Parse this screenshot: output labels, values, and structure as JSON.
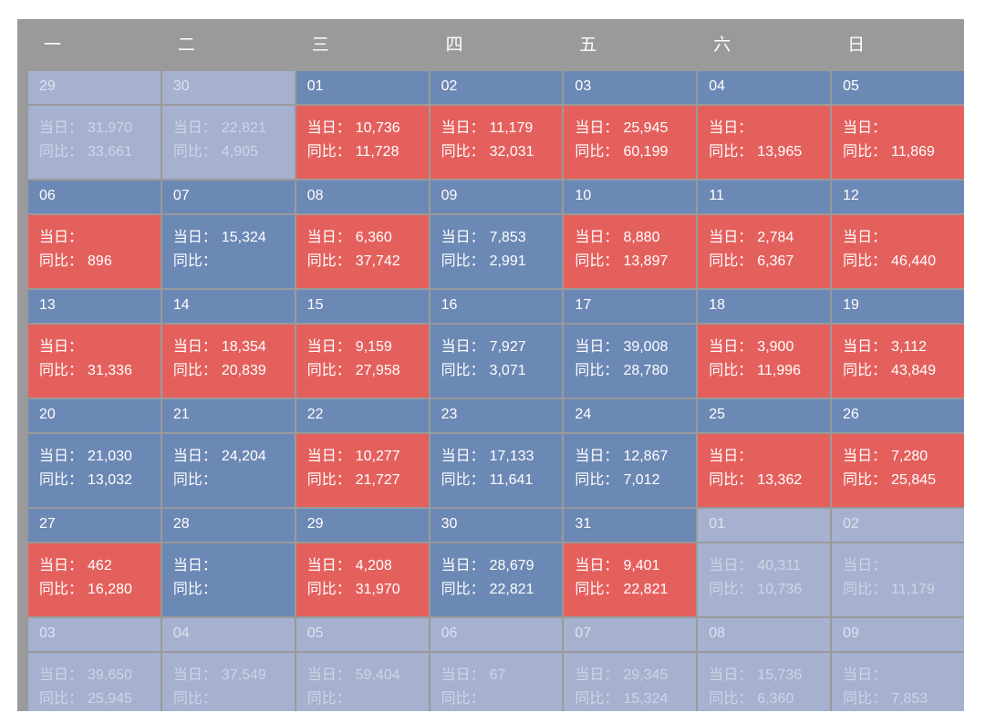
{
  "chart_data": {
    "type": "heatmap",
    "subtype": "calendar-heatmap",
    "weekday_headers": [
      "一",
      "二",
      "三",
      "四",
      "五",
      "六",
      "日"
    ],
    "labels": {
      "day": "当日：",
      "yoy": "同比："
    },
    "colors": {
      "frame_bg": "#9a9a9a",
      "current_month_blue": "#6c88b5",
      "highlight_red": "#e4605d",
      "other_month_faded": "#a6b1d0",
      "text_white": "#ffffff",
      "faded_text": "#ced5e5"
    },
    "legend_position": "none",
    "grid": "2px gray gaps between cells",
    "weeks": [
      [
        {
          "date": "29",
          "kind": "out",
          "day": "31,970",
          "yoy": "33,661"
        },
        {
          "date": "30",
          "kind": "out",
          "day": "22,821",
          "yoy": "4,905"
        },
        {
          "date": "01",
          "kind": "red",
          "day": "10,736",
          "yoy": "11,728"
        },
        {
          "date": "02",
          "kind": "red",
          "day": "11,179",
          "yoy": "32,031"
        },
        {
          "date": "03",
          "kind": "red",
          "day": "25,945",
          "yoy": "60,199"
        },
        {
          "date": "04",
          "kind": "red",
          "day": "",
          "yoy": "13,965"
        },
        {
          "date": "05",
          "kind": "red",
          "day": "",
          "yoy": "11,869"
        }
      ],
      [
        {
          "date": "06",
          "kind": "red",
          "day": "",
          "yoy": "896"
        },
        {
          "date": "07",
          "kind": "blue",
          "day": "15,324",
          "yoy": ""
        },
        {
          "date": "08",
          "kind": "red",
          "day": "6,360",
          "yoy": "37,742"
        },
        {
          "date": "09",
          "kind": "blue",
          "day": "7,853",
          "yoy": "2,991"
        },
        {
          "date": "10",
          "kind": "red",
          "day": "8,880",
          "yoy": "13,897"
        },
        {
          "date": "11",
          "kind": "red",
          "day": "2,784",
          "yoy": "6,367"
        },
        {
          "date": "12",
          "kind": "red",
          "day": "",
          "yoy": "46,440"
        }
      ],
      [
        {
          "date": "13",
          "kind": "red",
          "day": "",
          "yoy": "31,336"
        },
        {
          "date": "14",
          "kind": "red",
          "day": "18,354",
          "yoy": "20,839"
        },
        {
          "date": "15",
          "kind": "red",
          "day": "9,159",
          "yoy": "27,958"
        },
        {
          "date": "16",
          "kind": "blue",
          "day": "7,927",
          "yoy": "3,071"
        },
        {
          "date": "17",
          "kind": "blue",
          "day": "39,008",
          "yoy": "28,780"
        },
        {
          "date": "18",
          "kind": "red",
          "day": "3,900",
          "yoy": "11,996"
        },
        {
          "date": "19",
          "kind": "red",
          "day": "3,112",
          "yoy": "43,849"
        }
      ],
      [
        {
          "date": "20",
          "kind": "blue",
          "day": "21,030",
          "yoy": "13,032"
        },
        {
          "date": "21",
          "kind": "blue",
          "day": "24,204",
          "yoy": ""
        },
        {
          "date": "22",
          "kind": "red",
          "day": "10,277",
          "yoy": "21,727"
        },
        {
          "date": "23",
          "kind": "blue",
          "day": "17,133",
          "yoy": "11,641"
        },
        {
          "date": "24",
          "kind": "blue",
          "day": "12,867",
          "yoy": "7,012"
        },
        {
          "date": "25",
          "kind": "red",
          "day": "",
          "yoy": "13,362"
        },
        {
          "date": "26",
          "kind": "red",
          "day": "7,280",
          "yoy": "25,845"
        }
      ],
      [
        {
          "date": "27",
          "kind": "red",
          "day": "462",
          "yoy": "16,280"
        },
        {
          "date": "28",
          "kind": "blue",
          "day": "",
          "yoy": ""
        },
        {
          "date": "29",
          "kind": "red",
          "day": "4,208",
          "yoy": "31,970"
        },
        {
          "date": "30",
          "kind": "blue",
          "day": "28,679",
          "yoy": "22,821"
        },
        {
          "date": "31",
          "kind": "red",
          "day": "9,401",
          "yoy": "22,821"
        },
        {
          "date": "01",
          "kind": "out",
          "day": "40,311",
          "yoy": "10,736"
        },
        {
          "date": "02",
          "kind": "out",
          "day": "",
          "yoy": "11,179"
        }
      ],
      [
        {
          "date": "03",
          "kind": "out",
          "day": "39,650",
          "yoy": "25,945"
        },
        {
          "date": "04",
          "kind": "out",
          "day": "37,549",
          "yoy": ""
        },
        {
          "date": "05",
          "kind": "out",
          "day": "59,404",
          "yoy": ""
        },
        {
          "date": "06",
          "kind": "out",
          "day": "67",
          "yoy": ""
        },
        {
          "date": "07",
          "kind": "out",
          "day": "29,345",
          "yoy": "15,324"
        },
        {
          "date": "08",
          "kind": "out",
          "day": "15,736",
          "yoy": "6,360"
        },
        {
          "date": "09",
          "kind": "out",
          "day": "",
          "yoy": "7,853"
        }
      ]
    ]
  }
}
